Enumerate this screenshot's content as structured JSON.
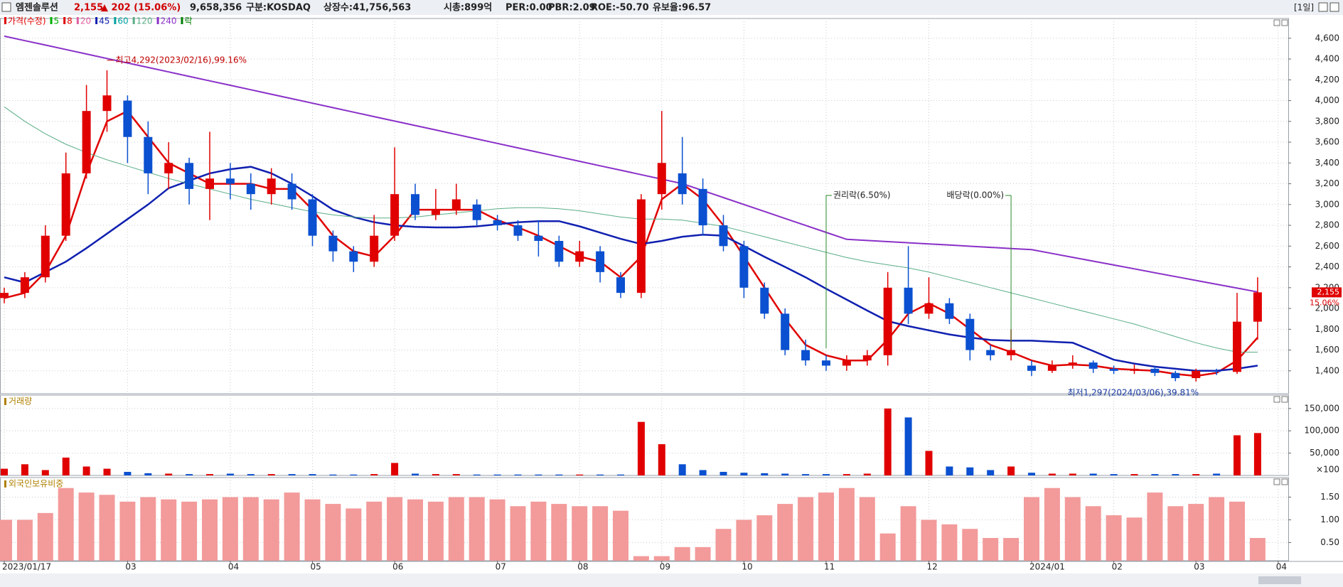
{
  "header": {
    "name": "엠젠솔루션",
    "price": "2,155",
    "change": "▲ 202 (15.06%)",
    "volume": "9,658,356",
    "market": "구분:KOSDAQ",
    "shares": "상장수:41,756,563",
    "cap": "시총:899억",
    "per": "PER:0.00",
    "pbr": "PBR:2.09",
    "roe": "ROE:-50.70",
    "reserve": "유보율:96.57",
    "period": "[1일]"
  },
  "chart_data": [
    {
      "type": "candlestick",
      "name": "가격(수정)",
      "up_color": "#e00000",
      "down_color": "#0a50d0",
      "open": [
        2100,
        2150,
        2300,
        2700,
        3300,
        3900,
        4000,
        3650,
        3300,
        3400,
        3150,
        3250,
        3200,
        3100,
        3200,
        3050,
        2700,
        2550,
        2450,
        2700,
        3100,
        2900,
        2950,
        3000,
        2850,
        2800,
        2700,
        2650,
        2450,
        2550,
        2300,
        2150,
        3100,
        3300,
        3150,
        2800,
        2600,
        2200,
        1950,
        1600,
        1500,
        1450,
        1500,
        1550,
        2200,
        1950,
        2050,
        1900,
        1600,
        1550,
        1450,
        1400,
        1450,
        1480,
        1420,
        1400,
        1420,
        1380,
        1330,
        1400,
        1390,
        1873,
        null
      ],
      "high": [
        2200,
        2350,
        2800,
        3500,
        4150,
        4292,
        4050,
        3800,
        3600,
        3450,
        3700,
        3400,
        3300,
        3350,
        3300,
        3100,
        2750,
        2600,
        2900,
        3550,
        3200,
        3150,
        3200,
        3050,
        2900,
        2850,
        2850,
        2700,
        2650,
        2600,
        2350,
        3100,
        3900,
        3650,
        3250,
        2900,
        2650,
        2250,
        2000,
        1700,
        1550,
        1550,
        1600,
        2350,
        2600,
        2300,
        2100,
        1950,
        1650,
        1800,
        1500,
        1500,
        1550,
        1500,
        1450,
        1460,
        1450,
        1400,
        1420,
        1420,
        2150,
        2300,
        null
      ],
      "low": [
        2050,
        2100,
        2250,
        2650,
        3250,
        3700,
        3400,
        3100,
        3150,
        3000,
        2850,
        3050,
        2950,
        3000,
        2950,
        2600,
        2450,
        2350,
        2400,
        2650,
        2850,
        2850,
        2900,
        2800,
        2750,
        2650,
        2500,
        2400,
        2400,
        2250,
        2100,
        2100,
        2950,
        3000,
        2700,
        2550,
        2100,
        1900,
        1550,
        1450,
        1400,
        1400,
        1450,
        1450,
        1850,
        1900,
        1850,
        1500,
        1500,
        1500,
        1350,
        1380,
        1420,
        1380,
        1370,
        1370,
        1350,
        1300,
        1297,
        1360,
        1370,
        1700,
        null
      ],
      "close": [
        2150,
        2300,
        2700,
        3300,
        3900,
        4050,
        3650,
        3300,
        3400,
        3150,
        3250,
        3200,
        3100,
        3250,
        3050,
        2700,
        2550,
        2450,
        2700,
        3100,
        2900,
        2950,
        3050,
        2850,
        2800,
        2700,
        2650,
        2450,
        2550,
        2350,
        2150,
        3050,
        3400,
        3100,
        2800,
        2600,
        2200,
        1950,
        1600,
        1500,
        1450,
        1500,
        1550,
        2200,
        1950,
        2050,
        1900,
        1600,
        1550,
        1600,
        1400,
        1450,
        1480,
        1420,
        1400,
        1420,
        1380,
        1330,
        1400,
        1390,
        1873,
        2155,
        null
      ],
      "series": [
        {
          "name": "8",
          "color": "#e00000",
          "width": 2.5,
          "values": [
            2100,
            2150,
            2350,
            2700,
            3300,
            3800,
            3900,
            3650,
            3400,
            3300,
            3200,
            3200,
            3200,
            3150,
            3150,
            2950,
            2700,
            2550,
            2500,
            2700,
            2950,
            2950,
            2950,
            2950,
            2850,
            2780,
            2700,
            2600,
            2500,
            2450,
            2300,
            2500,
            3050,
            3200,
            3050,
            2800,
            2500,
            2200,
            1900,
            1650,
            1550,
            1500,
            1500,
            1700,
            1950,
            2050,
            1950,
            1800,
            1650,
            1580,
            1500,
            1450,
            1460,
            1450,
            1420,
            1410,
            1400,
            1370,
            1350,
            1380,
            1500,
            1720,
            null
          ]
        },
        {
          "name": "45",
          "color": "#1020b0",
          "width": 2.5,
          "values": [
            2300,
            2250,
            2350,
            2450,
            2580,
            2720,
            2860,
            3000,
            3157,
            3230,
            3300,
            3340,
            3363,
            3300,
            3200,
            3080,
            2950,
            2880,
            2830,
            2800,
            2785,
            2780,
            2780,
            2790,
            2810,
            2830,
            2840,
            2840,
            2790,
            2730,
            2670,
            2620,
            2650,
            2690,
            2710,
            2700,
            2600,
            2497,
            2400,
            2300,
            2190,
            2085,
            1980,
            1878,
            1830,
            1790,
            1750,
            1720,
            1697,
            1690,
            1690,
            1680,
            1670,
            1590,
            1507,
            1470,
            1440,
            1420,
            1400,
            1400,
            1420,
            1450,
            null
          ]
        },
        {
          "name": "120",
          "color": "#5aae86",
          "width": 1,
          "values": [
            3940,
            3800,
            3680,
            3580,
            3500,
            3430,
            3370,
            3310,
            3250,
            3200,
            3150,
            3100,
            3050,
            3010,
            2970,
            2930,
            2900,
            2880,
            2870,
            2870,
            2880,
            2900,
            2920,
            2940,
            2960,
            2970,
            2970,
            2960,
            2940,
            2910,
            2880,
            2860,
            2860,
            2850,
            2820,
            2790,
            2740,
            2690,
            2640,
            2590,
            2540,
            2490,
            2450,
            2420,
            2390,
            2350,
            2300,
            2250,
            2200,
            2150,
            2100,
            2050,
            2000,
            1950,
            1900,
            1850,
            1790,
            1730,
            1670,
            1620,
            1580,
            1580,
            null
          ]
        },
        {
          "name": "240",
          "color": "#8a30c8",
          "width": 2,
          "values": [
            4620,
            4577,
            4534,
            4491,
            4448,
            4405,
            4362,
            4319,
            4276,
            4233,
            4190,
            4147,
            4104,
            4061,
            4018,
            3975,
            3932,
            3889,
            3846,
            3803,
            3760,
            3717,
            3674,
            3631,
            3588,
            3545,
            3502,
            3459,
            3416,
            3373,
            3330,
            3287,
            3244,
            3201,
            3134,
            3067,
            3000,
            2933,
            2866,
            2799,
            2732,
            2665,
            2654,
            2643,
            2632,
            2621,
            2610,
            2599,
            2588,
            2577,
            2566,
            2529,
            2492,
            2455,
            2418,
            2381,
            2344,
            2307,
            2270,
            2233,
            2196,
            2159,
            null
          ]
        }
      ],
      "extra_legend": [
        {
          "name": "5",
          "color": "#00b000"
        },
        {
          "name": "20",
          "color": "#e060a0"
        },
        {
          "name": "60",
          "color": "#00a0a0"
        },
        {
          "name": "락",
          "color": "#008000"
        }
      ],
      "annotations": [
        {
          "text": "최고4,292(2023/02/16),99.16%"
        },
        {
          "text": "최저1,297(2024/03/06),39.81%"
        },
        {
          "text": "권리락(6.50%)"
        },
        {
          "text": "배당락(0.00%)"
        }
      ],
      "price_tag": "2,155",
      "change_tag": "15.06%",
      "ylim": [
        1180,
        4790
      ],
      "yticks": [
        {
          "value": 1400,
          "label": "1,400"
        },
        {
          "value": 1600,
          "label": "1,600"
        },
        {
          "value": 1800,
          "label": "1,800"
        },
        {
          "value": 2000,
          "label": "2,000"
        },
        {
          "value": 2200,
          "label": "2,200"
        },
        {
          "value": 2400,
          "label": "2,400"
        },
        {
          "value": 2600,
          "label": "2,600"
        },
        {
          "value": 2800,
          "label": "2,800"
        },
        {
          "value": 3000,
          "label": "3,000"
        },
        {
          "value": 3200,
          "label": "3,200"
        },
        {
          "value": 3400,
          "label": "3,400"
        },
        {
          "value": 3600,
          "label": "3,600"
        },
        {
          "value": 3800,
          "label": "3,800"
        },
        {
          "value": 4000,
          "label": "4,000"
        },
        {
          "value": 4200,
          "label": "4,200"
        },
        {
          "value": 4400,
          "label": "4,400"
        },
        {
          "value": 4600,
          "label": "4,600"
        }
      ],
      "grid": true
    },
    {
      "type": "bar",
      "title": "거래량",
      "unit": "×100",
      "values": [
        15000,
        25000,
        12000,
        40000,
        20000,
        15000,
        8000,
        5000,
        4000,
        3000,
        3000,
        4000,
        3000,
        3000,
        3000,
        3000,
        2000,
        2000,
        3000,
        28000,
        4000,
        3000,
        3000,
        2000,
        2000,
        2000,
        2000,
        2000,
        2000,
        2000,
        2000,
        120000,
        70000,
        25000,
        12000,
        8000,
        6000,
        5000,
        4000,
        3000,
        3000,
        3000,
        4000,
        150000,
        130000,
        55000,
        20000,
        18000,
        12000,
        20000,
        6000,
        4000,
        4000,
        4000,
        3000,
        3000,
        3000,
        3000,
        3000,
        4000,
        90000,
        95000,
        null
      ],
      "ylim": [
        0,
        180000
      ],
      "yticks": [
        {
          "value": 50000,
          "label": "50,000"
        },
        {
          "value": 100000,
          "label": "100,000"
        },
        {
          "value": 150000,
          "label": "150,000"
        }
      ],
      "grid": true
    },
    {
      "type": "bar",
      "title": "외국인보유비중",
      "color": "#f39a9a",
      "categories": [
        "2023/01/17",
        null,
        null,
        null,
        null,
        null,
        "03",
        null,
        null,
        null,
        null,
        "04",
        null,
        null,
        null,
        "05",
        null,
        null,
        null,
        "06",
        null,
        null,
        null,
        null,
        "07",
        null,
        null,
        null,
        "08",
        null,
        null,
        null,
        "09",
        null,
        null,
        null,
        "10",
        null,
        null,
        null,
        "11",
        null,
        null,
        null,
        null,
        "12",
        null,
        null,
        null,
        null,
        "2024/01",
        null,
        null,
        null,
        "02",
        null,
        null,
        null,
        "03",
        null,
        null,
        null,
        "04"
      ],
      "values": [
        1.0,
        1.0,
        1.15,
        1.7,
        1.6,
        1.55,
        1.4,
        1.5,
        1.45,
        1.4,
        1.45,
        1.5,
        1.5,
        1.45,
        1.6,
        1.45,
        1.35,
        1.25,
        1.4,
        1.5,
        1.45,
        1.4,
        1.5,
        1.5,
        1.45,
        1.3,
        1.4,
        1.35,
        1.3,
        1.3,
        1.2,
        0.2,
        0.2,
        0.4,
        0.4,
        0.8,
        1.0,
        1.1,
        1.35,
        1.5,
        1.6,
        1.7,
        1.5,
        0.7,
        1.3,
        1.0,
        0.9,
        0.8,
        0.6,
        0.6,
        1.5,
        1.7,
        1.5,
        1.3,
        1.1,
        1.05,
        1.6,
        1.3,
        1.35,
        1.5,
        1.4,
        0.6,
        null
      ],
      "ylim": [
        0.1,
        1.93
      ],
      "yticks": [
        {
          "value": 0.5,
          "label": "0.50"
        },
        {
          "value": 1,
          "label": "1.00"
        },
        {
          "value": 1.5,
          "label": "1.50"
        }
      ],
      "grid": true
    }
  ]
}
